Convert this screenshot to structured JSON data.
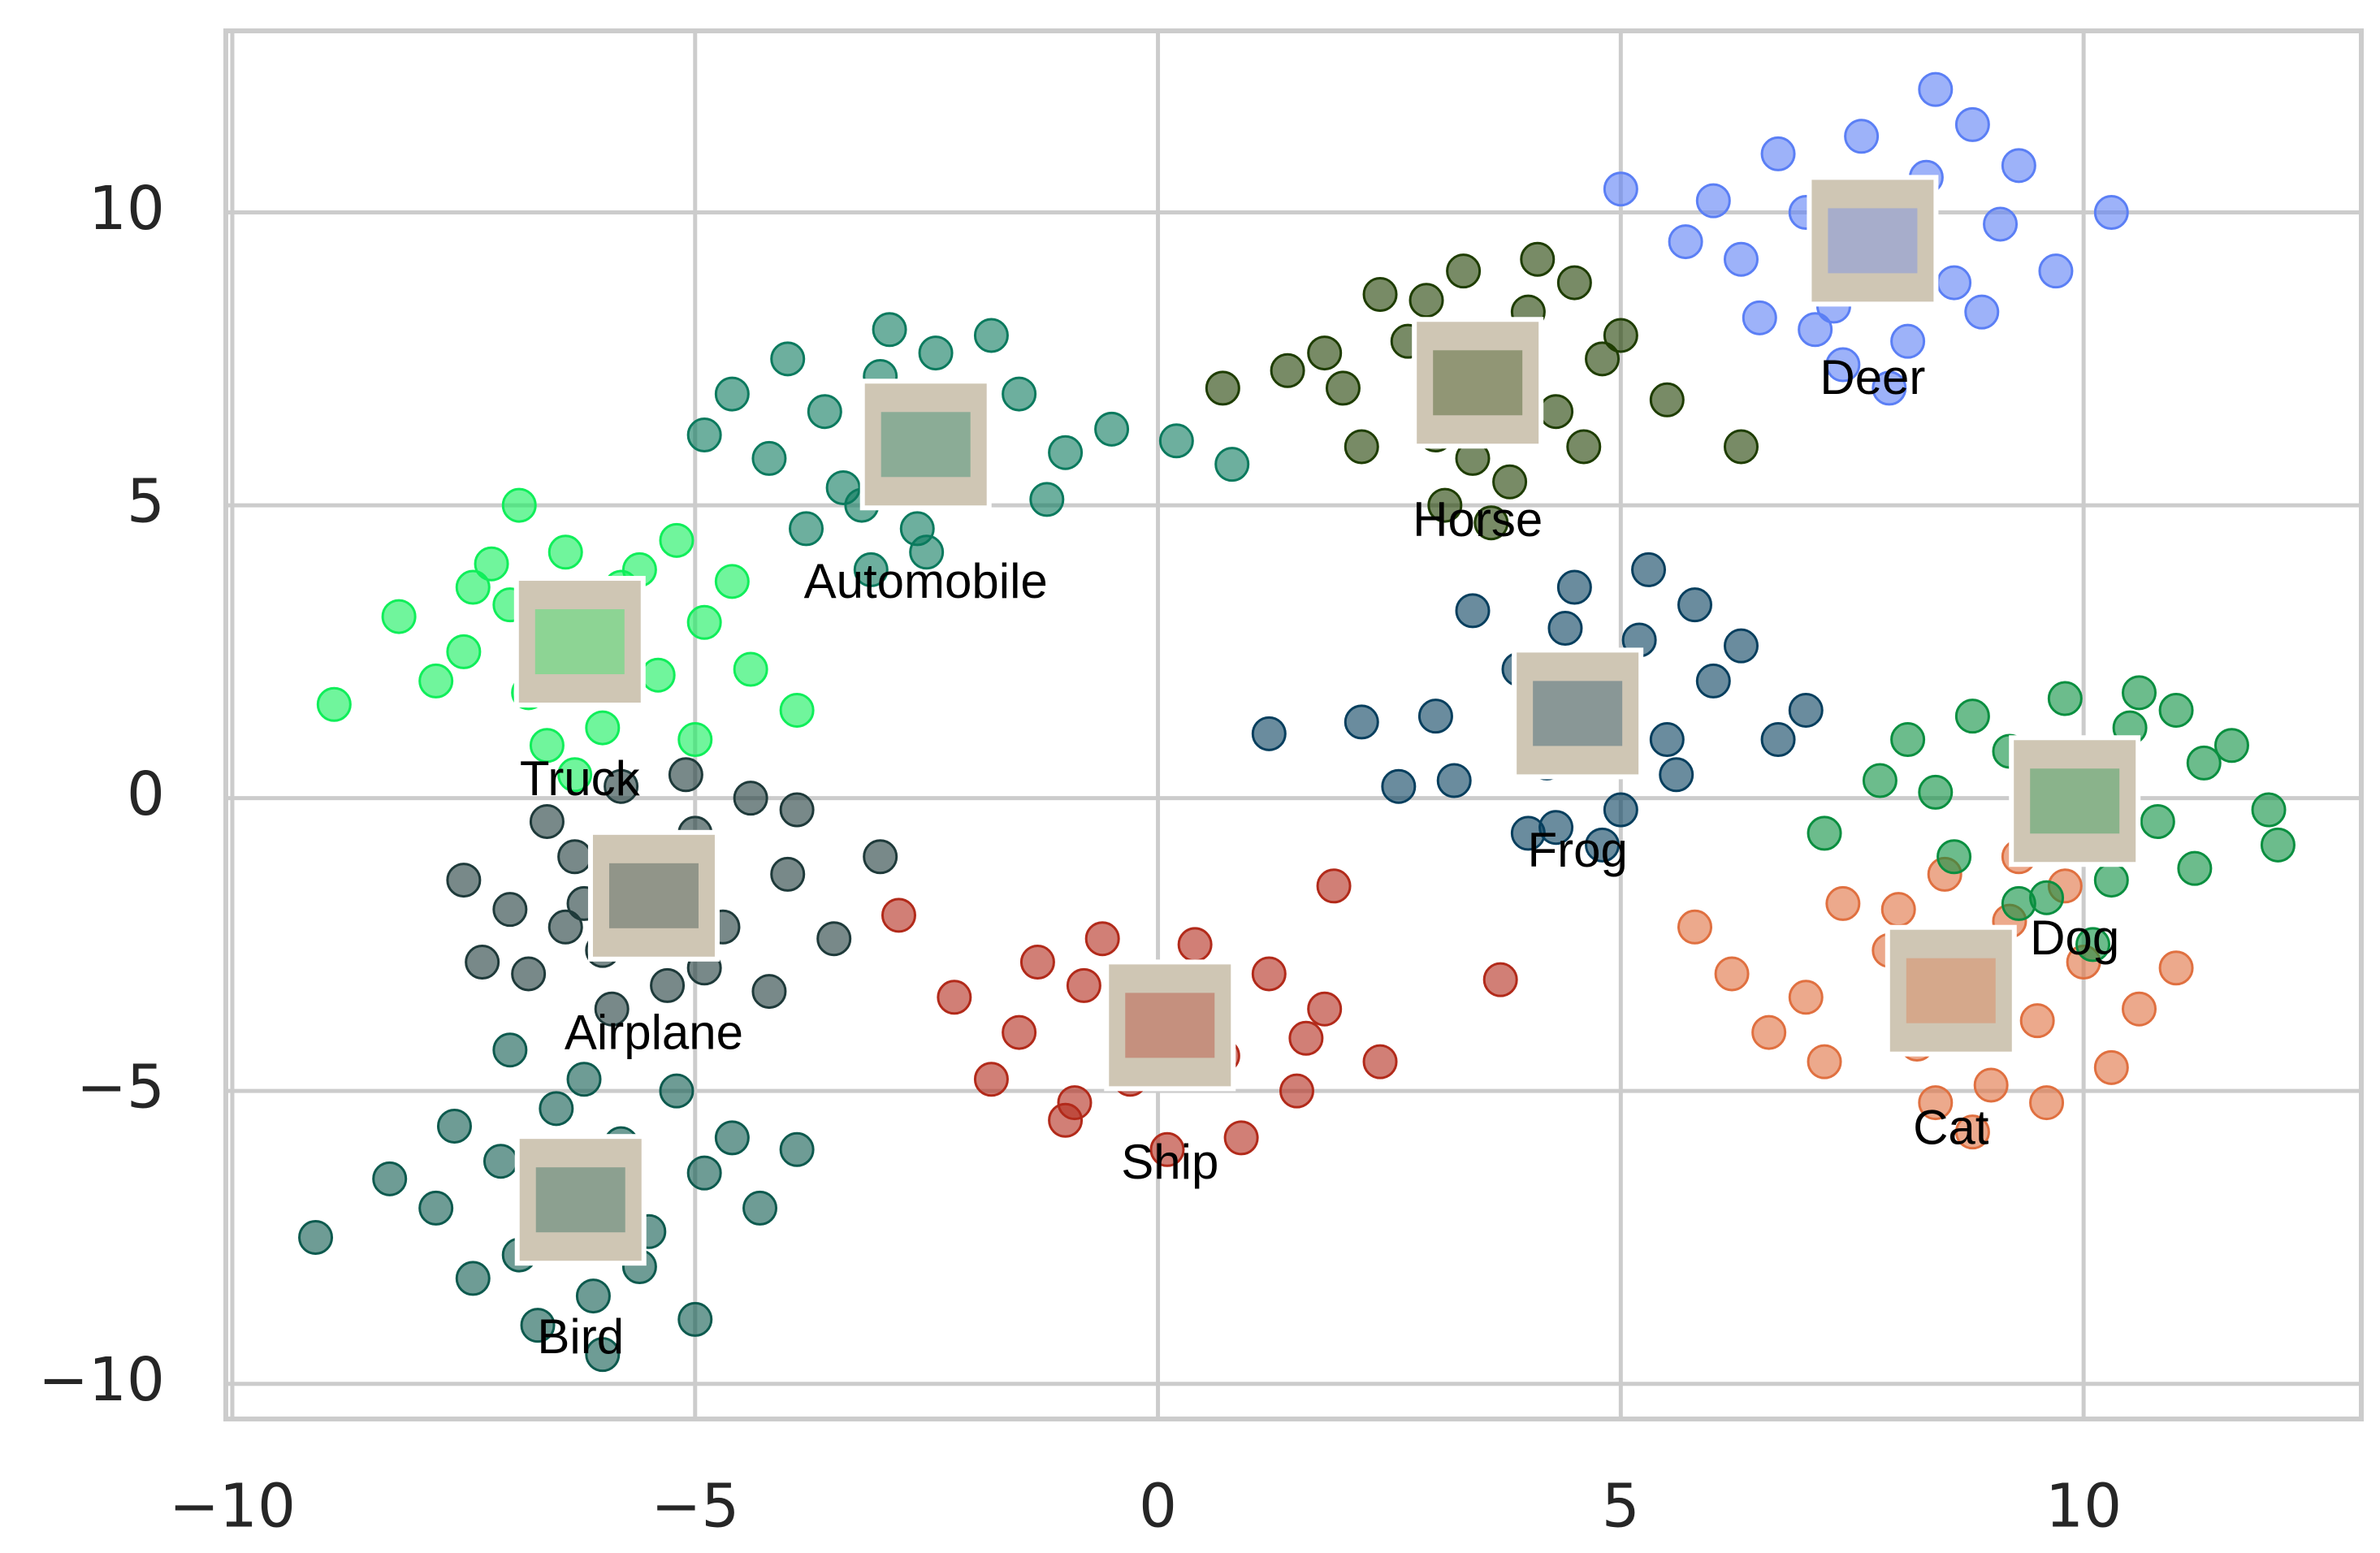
{
  "chart_data": {
    "type": "scatter",
    "xlim": [
      -10.07,
      13.0
    ],
    "ylim": [
      -10.6,
      13.1
    ],
    "xticks": [
      {
        "value": -10,
        "label": "−10"
      },
      {
        "value": -5,
        "label": "−5"
      },
      0,
      5,
      10
    ],
    "yticks": [
      {
        "value": -10,
        "label": "−10"
      },
      {
        "value": -5,
        "label": "−5"
      },
      0,
      5,
      10
    ],
    "grid": true,
    "series": [
      {
        "name": "Truck",
        "color": "#10ee5a",
        "x": [
          -6.2,
          -7.0,
          -5.4,
          -6.8,
          -5.8,
          -7.5,
          -4.9,
          -6.4,
          -8.2,
          -4.4,
          -6.0,
          -7.2,
          -5.2,
          -6.6,
          -8.9,
          -3.9,
          -5.6,
          -7.8,
          -6.9,
          -5.0,
          -6.3,
          -4.6,
          -7.4,
          -5.9
        ],
        "y": [
          2.7,
          3.3,
          2.1,
          1.8,
          3.6,
          2.5,
          3.0,
          4.2,
          3.1,
          2.2,
          1.2,
          4.0,
          4.4,
          0.9,
          1.6,
          1.5,
          3.9,
          2.0,
          5.0,
          1.0,
          0.4,
          3.7,
          3.6,
          2.4
        ]
      },
      {
        "name": "Automobile",
        "color": "#0b7a5e",
        "x": [
          -2.8,
          -3.6,
          -2.0,
          -3.2,
          -1.5,
          -4.2,
          -2.4,
          -3.0,
          -1.0,
          -4.6,
          -2.6,
          -3.8,
          -1.8,
          -0.5,
          -4.9,
          0.2,
          -2.2,
          -3.4,
          -1.2,
          -2.9,
          0.8,
          -4.0,
          -2.5,
          -3.1
        ],
        "y": [
          6.0,
          6.6,
          5.4,
          5.0,
          6.9,
          5.8,
          7.6,
          7.2,
          5.9,
          6.9,
          4.6,
          4.6,
          7.9,
          6.3,
          6.2,
          6.1,
          6.2,
          5.3,
          5.1,
          8.0,
          5.7,
          7.5,
          4.2,
          3.9
        ]
      },
      {
        "name": "Airplane",
        "color": "#1e3a3a",
        "x": [
          -5.5,
          -6.3,
          -4.7,
          -6.0,
          -5.0,
          -7.0,
          -4.0,
          -5.8,
          -7.5,
          -3.5,
          -5.3,
          -6.6,
          -4.4,
          -5.9,
          -3.0,
          -7.3,
          -4.9,
          -6.2,
          -3.9,
          -5.4,
          -6.8,
          -4.2,
          -5.1,
          -6.4
        ],
        "y": [
          -1.6,
          -1.0,
          -2.2,
          -2.6,
          -0.6,
          -1.9,
          -1.3,
          0.2,
          -1.4,
          -2.4,
          -3.2,
          -0.4,
          0.0,
          -3.6,
          -1.0,
          -2.8,
          -2.9,
          -1.8,
          -0.2,
          -1.2,
          -3.0,
          -3.3,
          0.4,
          -2.2
        ]
      },
      {
        "name": "Bird",
        "color": "#0d5a4e",
        "x": [
          -6.3,
          -7.1,
          -5.5,
          -6.9,
          -5.8,
          -7.8,
          -4.9,
          -6.5,
          -8.3,
          -4.3,
          -6.1,
          -7.4,
          -5.2,
          -6.7,
          -9.1,
          -3.9,
          -5.6,
          -7.6,
          -6.0,
          -4.6,
          -7.0,
          -5.0,
          -6.2,
          -5.9
        ],
        "y": [
          -6.8,
          -6.2,
          -7.4,
          -7.8,
          -5.9,
          -7.0,
          -6.4,
          -5.3,
          -6.5,
          -7.0,
          -8.5,
          -8.2,
          -5.0,
          -9.0,
          -7.5,
          -6.0,
          -8.0,
          -5.6,
          -9.5,
          -5.8,
          -4.3,
          -8.9,
          -4.8,
          -7.2
        ]
      },
      {
        "name": "Ship",
        "color": "#b22a1a",
        "x": [
          0,
          -0.8,
          0.7,
          -0.3,
          1.2,
          -1.5,
          0.4,
          -1.0,
          1.8,
          -2.2,
          0.1,
          -1.8,
          1.5,
          -0.6,
          2.4,
          -2.8,
          0.9,
          -1.3,
          0.3,
          1.9,
          -0.2,
          3.7,
          -0.9,
          1.6
        ],
        "y": [
          -3.8,
          -3.2,
          -4.4,
          -4.8,
          -3.0,
          -4.0,
          -2.5,
          -5.5,
          -3.6,
          -3.4,
          -6.0,
          -4.8,
          -5.0,
          -2.4,
          -4.5,
          -2.0,
          -5.8,
          -2.8,
          -3.5,
          -1.5,
          -4.2,
          -3.1,
          -5.2,
          -4.1
        ]
      },
      {
        "name": "Horse",
        "color": "#1e3d00",
        "x": [
          3.5,
          2.7,
          4.3,
          3.0,
          4.0,
          2.0,
          4.8,
          3.3,
          1.4,
          5.5,
          3.8,
          2.4,
          4.5,
          3.1,
          0.7,
          6.3,
          3.6,
          2.2,
          4.1,
          5.0,
          2.9,
          3.4,
          4.6,
          1.8
        ],
        "y": [
          7.2,
          7.8,
          6.6,
          6.2,
          8.3,
          7.0,
          7.5,
          9.0,
          7.3,
          6.8,
          5.4,
          8.6,
          8.8,
          5.0,
          7.0,
          6.0,
          4.7,
          6.0,
          9.2,
          7.9,
          8.5,
          5.8,
          6.0,
          7.6
        ]
      },
      {
        "name": "Deer",
        "color": "#5b7ff5",
        "x": [
          7.8,
          7.0,
          8.6,
          7.3,
          8.3,
          6.3,
          9.1,
          7.6,
          5.7,
          9.7,
          8.1,
          6.7,
          8.8,
          7.4,
          5.0,
          10.3,
          7.9,
          6.5,
          8.4,
          9.3,
          7.1,
          7.5,
          8.9,
          6.0
        ],
        "y": [
          9.4,
          10.0,
          8.8,
          8.4,
          10.6,
          9.2,
          9.8,
          11.3,
          9.5,
          9.0,
          7.8,
          11.0,
          11.5,
          7.4,
          10.4,
          10.0,
          7.0,
          8.2,
          12.1,
          10.8,
          8.0,
          9.7,
          8.3,
          10.2
        ]
      },
      {
        "name": "Frog",
        "color": "#073f5e",
        "x": [
          4.7,
          3.9,
          5.5,
          4.2,
          5.2,
          3.0,
          6.0,
          4.5,
          2.2,
          6.7,
          5.0,
          3.4,
          5.8,
          4.3,
          1.2,
          7.0,
          4.8,
          3.2,
          5.3,
          6.3,
          4.0,
          2.6,
          5.6,
          4.4
        ],
        "y": [
          1.6,
          2.2,
          1.0,
          0.6,
          2.7,
          1.4,
          2.0,
          3.6,
          1.3,
          1.0,
          -0.2,
          3.2,
          3.3,
          -0.5,
          1.1,
          1.5,
          -0.8,
          0.3,
          3.9,
          2.6,
          -0.6,
          0.2,
          0.4,
          2.9
        ]
      },
      {
        "name": "Cat",
        "color": "#e07040",
        "x": [
          8.7,
          7.9,
          9.5,
          8.2,
          9.2,
          7.0,
          10.0,
          8.5,
          6.2,
          10.6,
          9.0,
          7.4,
          9.8,
          8.4,
          5.8,
          11.0,
          8.8,
          7.2,
          9.3,
          10.3,
          8.0,
          6.6,
          9.6,
          8.6
        ],
        "y": [
          -3.2,
          -2.6,
          -3.8,
          -4.2,
          -2.1,
          -3.4,
          -2.8,
          -1.3,
          -3.0,
          -3.6,
          -4.9,
          -1.8,
          -1.5,
          -5.2,
          -2.2,
          -2.9,
          -5.7,
          -4.5,
          -1.0,
          -4.6,
          -1.9,
          -4.0,
          -5.2,
          -3.5
        ]
      },
      {
        "name": "Dog",
        "color": "#0a8f40",
        "x": [
          10,
          9.2,
          10.8,
          9.5,
          10.5,
          8.4,
          11.3,
          9.8,
          7.8,
          12.0,
          10.3,
          8.8,
          11.0,
          9.6,
          7.2,
          12.1,
          10.1,
          8.6,
          10.6,
          11.6,
          9.3,
          9.9,
          11.2,
          8.1
        ],
        "y": [
          0.2,
          0.8,
          -0.4,
          -0.8,
          1.2,
          0.1,
          0.6,
          1.7,
          0.3,
          -0.2,
          -1.4,
          1.4,
          1.5,
          -1.7,
          -0.6,
          -0.8,
          -2.5,
          -1.0,
          1.8,
          0.9,
          -1.8,
          -0.3,
          -1.2,
          1.0
        ]
      }
    ]
  }
}
